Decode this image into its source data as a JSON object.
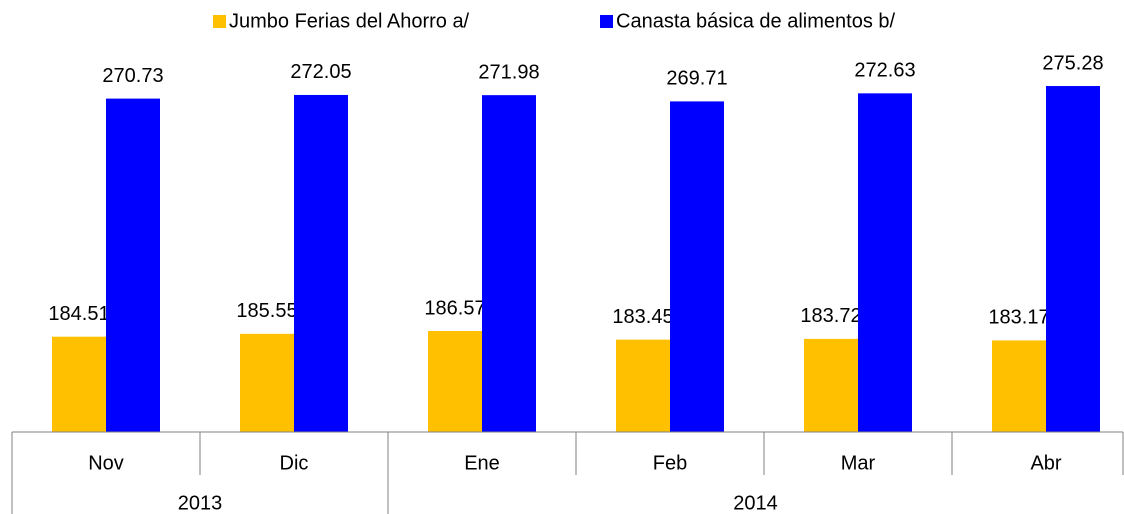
{
  "chart_data": {
    "type": "bar",
    "categories": [
      "Nov",
      "Dic",
      "Ene",
      "Feb",
      "Mar",
      "Abr"
    ],
    "groups": [
      {
        "label": "2013",
        "span": 2
      },
      {
        "label": "2014",
        "span": 4
      }
    ],
    "series": [
      {
        "name": "Jumbo Ferias del Ahorro a/",
        "color": "#ffc000",
        "values": [
          184.51,
          185.55,
          186.57,
          183.45,
          183.72,
          183.17
        ]
      },
      {
        "name": "Canasta básica de alimentos b/",
        "color": "#0000ff",
        "values": [
          270.73,
          272.05,
          271.98,
          269.71,
          272.63,
          275.28
        ]
      }
    ],
    "ylim": [
      150,
      280
    ]
  }
}
